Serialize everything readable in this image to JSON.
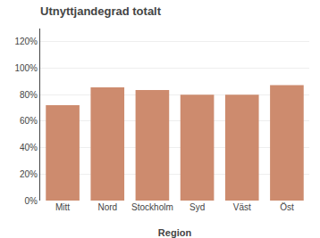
{
  "chart_data": {
    "type": "bar",
    "title": "Utnyttjandegrad totalt",
    "xlabel": "Region",
    "categories": [
      "Mitt",
      "Nord",
      "Stockholm",
      "Syd",
      "Väst",
      "Öst"
    ],
    "values": [
      0.72,
      0.855,
      0.835,
      0.8,
      0.8,
      0.872
    ],
    "color": "#cd8b6e",
    "ylim": [
      0,
      1.3
    ],
    "yticks": [
      {
        "value": 0.0,
        "label": "0%"
      },
      {
        "value": 0.2,
        "label": "20%"
      },
      {
        "value": 0.4,
        "label": "40%"
      },
      {
        "value": 0.6,
        "label": "60%"
      },
      {
        "value": 0.8,
        "label": "80%"
      },
      {
        "value": 1.0,
        "label": "100%"
      },
      {
        "value": 1.2,
        "label": "120%"
      }
    ],
    "grid": true
  }
}
